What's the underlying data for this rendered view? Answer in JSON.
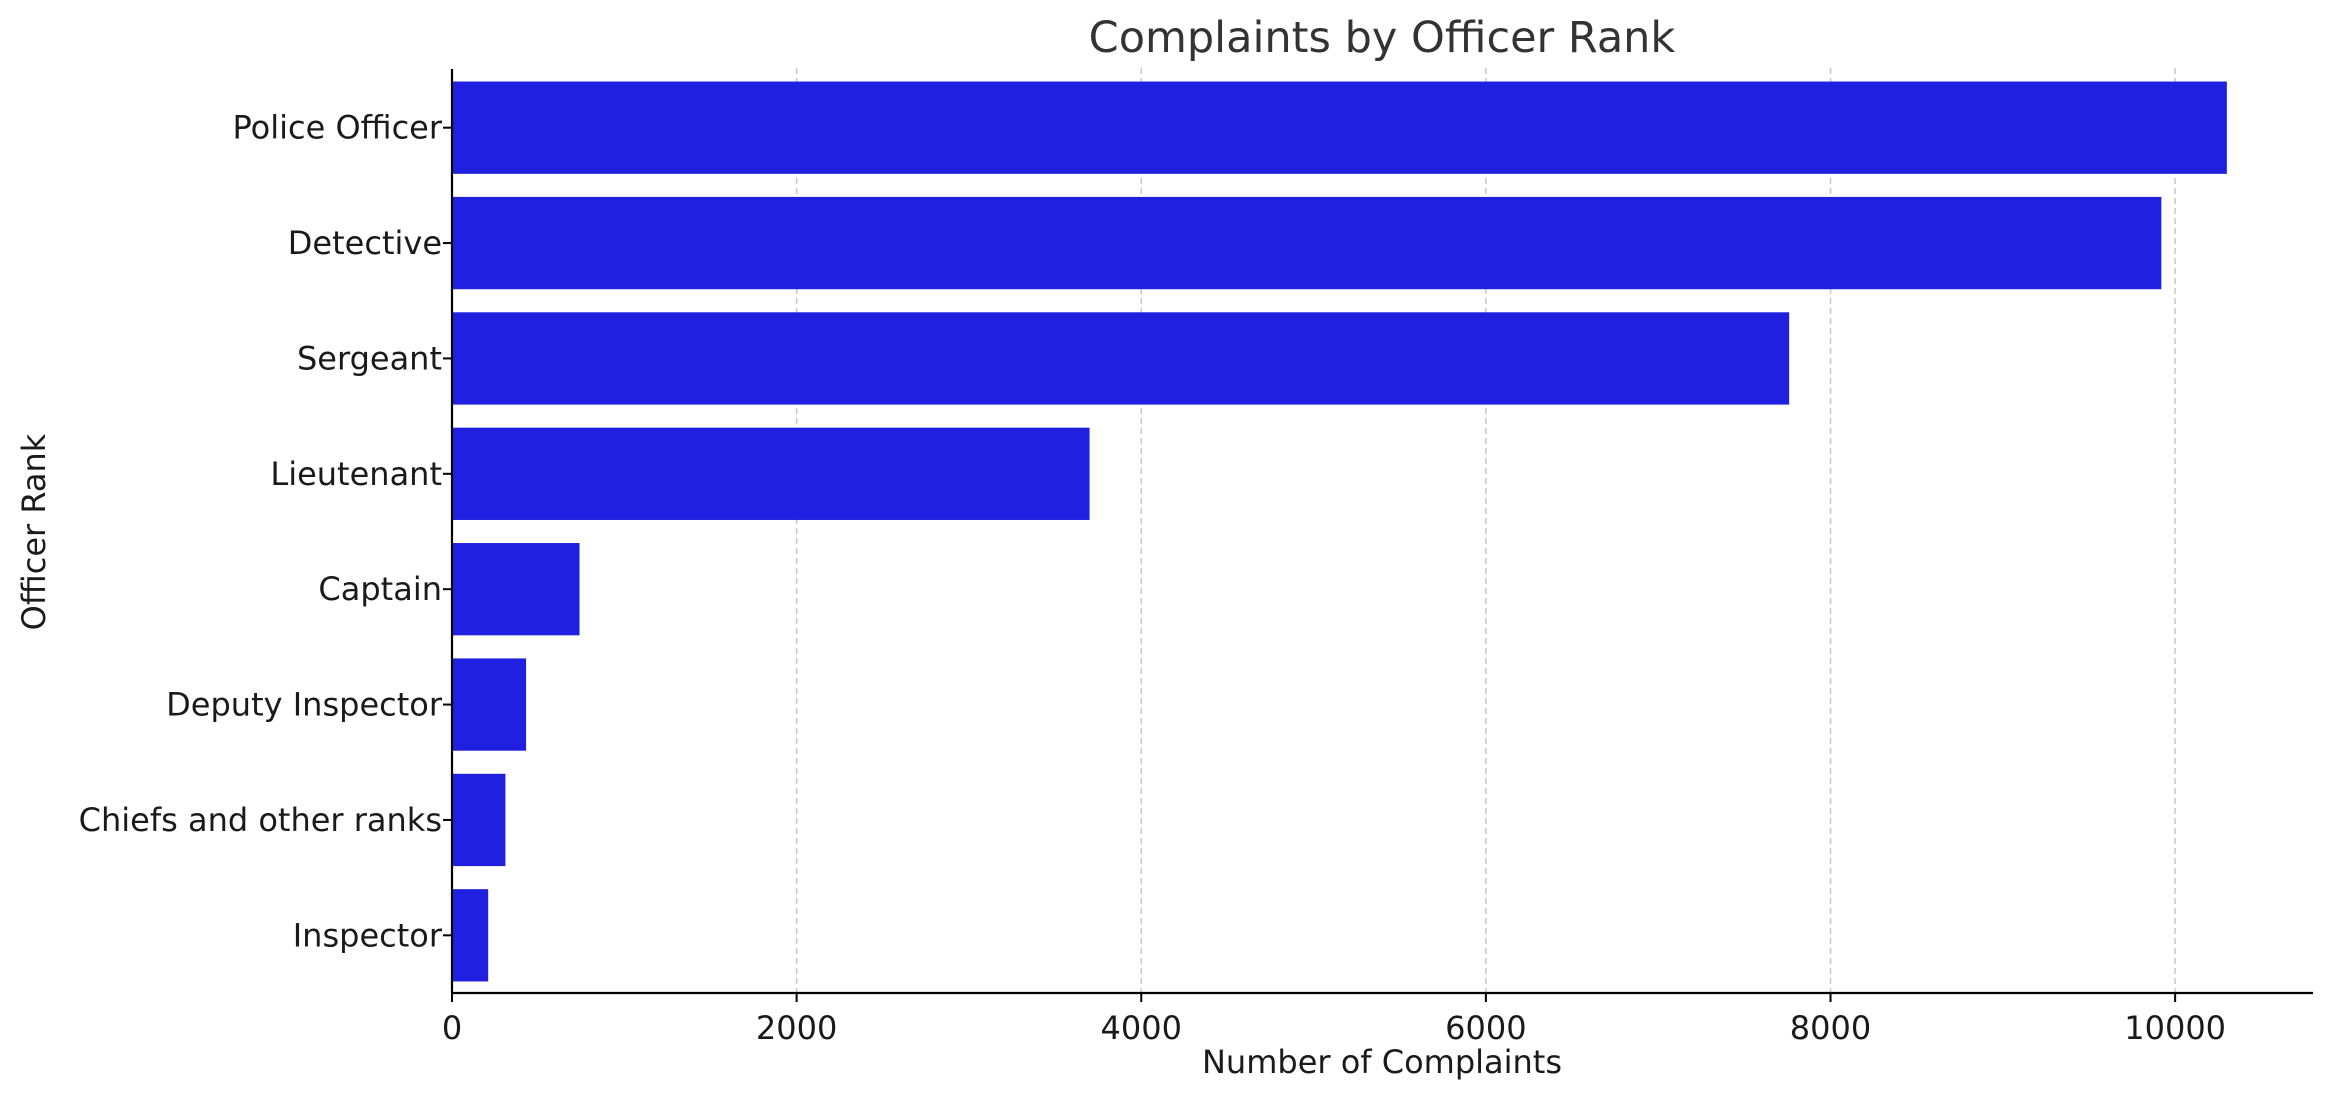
{
  "chart_data": {
    "type": "bar",
    "orientation": "horizontal",
    "title": "Complaints by Officer Rank",
    "xlabel": "Number of Complaints",
    "ylabel": "Officer Rank",
    "categories": [
      "Police Officer",
      "Detective",
      "Sergeant",
      "Lieutenant",
      "Captain",
      "Deputy Inspector",
      "Chiefs and other ranks",
      "Inspector"
    ],
    "values": [
      10300,
      9920,
      7760,
      3700,
      740,
      430,
      310,
      210
    ],
    "xlim": [
      0,
      10800
    ],
    "xticks": [
      0,
      2000,
      4000,
      6000,
      8000,
      10000
    ],
    "xtick_labels": [
      "0",
      "2000",
      "4000",
      "6000",
      "8000",
      "10000"
    ],
    "grid": "x-dashed",
    "bar_color": "#2020e0"
  }
}
